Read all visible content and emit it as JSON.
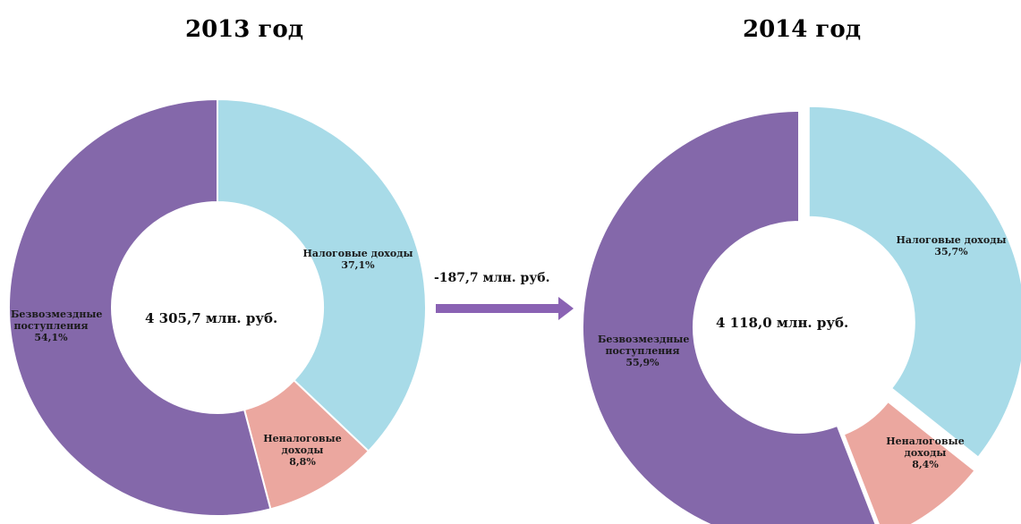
{
  "chart_data": [
    {
      "type": "pie",
      "title": "2013 год",
      "center_label": "4 305,7 млн. руб.",
      "slices": [
        {
          "name_lines": [
            "Налоговые доходы"
          ],
          "value": 37.1,
          "value_label": "37,1%",
          "color": "#a8dbe8"
        },
        {
          "name_lines": [
            "Неналоговые",
            "доходы"
          ],
          "value": 8.8,
          "value_label": "8,8%",
          "color": "#eba79f"
        },
        {
          "name_lines": [
            "Безвозмездные",
            "поступления"
          ],
          "value": 54.1,
          "value_label": "54,1%",
          "color": "#8468aa"
        }
      ]
    },
    {
      "type": "pie",
      "title": "2014 год",
      "center_label": "4 118,0 млн. руб.",
      "slices": [
        {
          "name_lines": [
            "Налоговые доходы"
          ],
          "value": 35.7,
          "value_label": "35,7%",
          "color": "#a8dbe8"
        },
        {
          "name_lines": [
            "Неналоговые",
            "доходы"
          ],
          "value": 8.4,
          "value_label": "8,4%",
          "color": "#eba79f"
        },
        {
          "name_lines": [
            "Безвозмездные",
            "поступления"
          ],
          "value": 55.9,
          "value_label": "55,9%",
          "color": "#8468aa"
        }
      ]
    }
  ],
  "change": {
    "label": "-187,7 млн. руб.",
    "arrow_color": "#8a62b3"
  }
}
